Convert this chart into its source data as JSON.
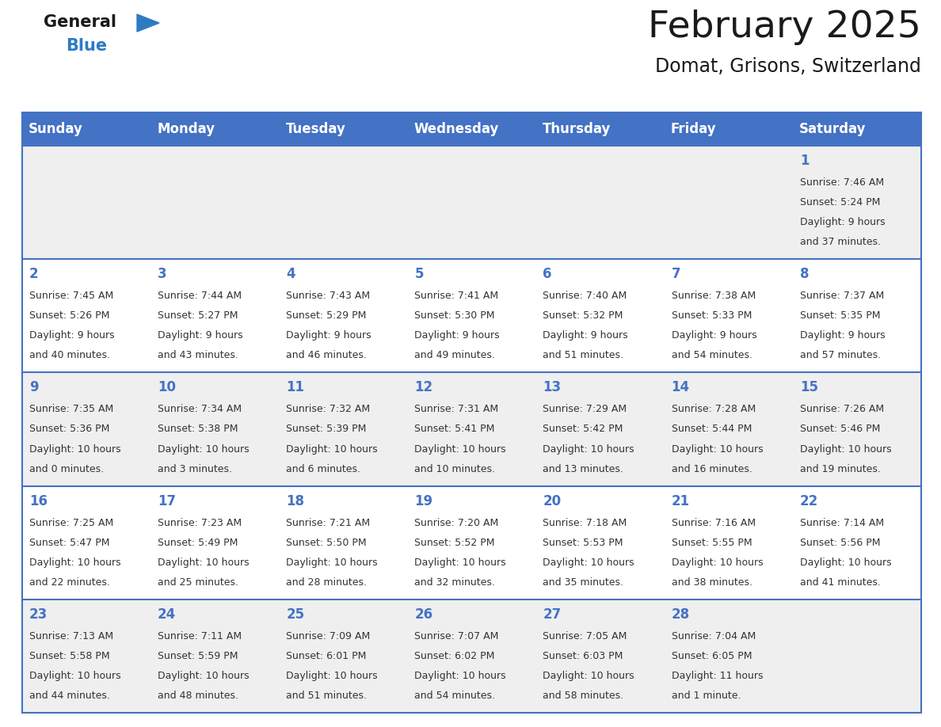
{
  "title": "February 2025",
  "subtitle": "Domat, Grisons, Switzerland",
  "days_of_week": [
    "Sunday",
    "Monday",
    "Tuesday",
    "Wednesday",
    "Thursday",
    "Friday",
    "Saturday"
  ],
  "header_bg": "#4472C4",
  "header_text": "#FFFFFF",
  "cell_bg_row0": "#EFEFEF",
  "cell_bg_row1": "#FFFFFF",
  "cell_bg_row2": "#EFEFEF",
  "cell_bg_row3": "#FFFFFF",
  "cell_bg_row4": "#EFEFEF",
  "cell_line_color": "#4472C4",
  "title_color": "#1a1a1a",
  "subtitle_color": "#1a1a1a",
  "day_number_color": "#4472C4",
  "info_color": "#333333",
  "logo_general_color": "#1a1a1a",
  "logo_blue_color": "#2E7BC4",
  "fig_width": 11.88,
  "fig_height": 9.18,
  "calendar_data": [
    {
      "day": 1,
      "col": 6,
      "row": 0,
      "sunrise": "7:46 AM",
      "sunset": "5:24 PM",
      "daylight_line1": "Daylight: 9 hours",
      "daylight_line2": "and 37 minutes."
    },
    {
      "day": 2,
      "col": 0,
      "row": 1,
      "sunrise": "7:45 AM",
      "sunset": "5:26 PM",
      "daylight_line1": "Daylight: 9 hours",
      "daylight_line2": "and 40 minutes."
    },
    {
      "day": 3,
      "col": 1,
      "row": 1,
      "sunrise": "7:44 AM",
      "sunset": "5:27 PM",
      "daylight_line1": "Daylight: 9 hours",
      "daylight_line2": "and 43 minutes."
    },
    {
      "day": 4,
      "col": 2,
      "row": 1,
      "sunrise": "7:43 AM",
      "sunset": "5:29 PM",
      "daylight_line1": "Daylight: 9 hours",
      "daylight_line2": "and 46 minutes."
    },
    {
      "day": 5,
      "col": 3,
      "row": 1,
      "sunrise": "7:41 AM",
      "sunset": "5:30 PM",
      "daylight_line1": "Daylight: 9 hours",
      "daylight_line2": "and 49 minutes."
    },
    {
      "day": 6,
      "col": 4,
      "row": 1,
      "sunrise": "7:40 AM",
      "sunset": "5:32 PM",
      "daylight_line1": "Daylight: 9 hours",
      "daylight_line2": "and 51 minutes."
    },
    {
      "day": 7,
      "col": 5,
      "row": 1,
      "sunrise": "7:38 AM",
      "sunset": "5:33 PM",
      "daylight_line1": "Daylight: 9 hours",
      "daylight_line2": "and 54 minutes."
    },
    {
      "day": 8,
      "col": 6,
      "row": 1,
      "sunrise": "7:37 AM",
      "sunset": "5:35 PM",
      "daylight_line1": "Daylight: 9 hours",
      "daylight_line2": "and 57 minutes."
    },
    {
      "day": 9,
      "col": 0,
      "row": 2,
      "sunrise": "7:35 AM",
      "sunset": "5:36 PM",
      "daylight_line1": "Daylight: 10 hours",
      "daylight_line2": "and 0 minutes."
    },
    {
      "day": 10,
      "col": 1,
      "row": 2,
      "sunrise": "7:34 AM",
      "sunset": "5:38 PM",
      "daylight_line1": "Daylight: 10 hours",
      "daylight_line2": "and 3 minutes."
    },
    {
      "day": 11,
      "col": 2,
      "row": 2,
      "sunrise": "7:32 AM",
      "sunset": "5:39 PM",
      "daylight_line1": "Daylight: 10 hours",
      "daylight_line2": "and 6 minutes."
    },
    {
      "day": 12,
      "col": 3,
      "row": 2,
      "sunrise": "7:31 AM",
      "sunset": "5:41 PM",
      "daylight_line1": "Daylight: 10 hours",
      "daylight_line2": "and 10 minutes."
    },
    {
      "day": 13,
      "col": 4,
      "row": 2,
      "sunrise": "7:29 AM",
      "sunset": "5:42 PM",
      "daylight_line1": "Daylight: 10 hours",
      "daylight_line2": "and 13 minutes."
    },
    {
      "day": 14,
      "col": 5,
      "row": 2,
      "sunrise": "7:28 AM",
      "sunset": "5:44 PM",
      "daylight_line1": "Daylight: 10 hours",
      "daylight_line2": "and 16 minutes."
    },
    {
      "day": 15,
      "col": 6,
      "row": 2,
      "sunrise": "7:26 AM",
      "sunset": "5:46 PM",
      "daylight_line1": "Daylight: 10 hours",
      "daylight_line2": "and 19 minutes."
    },
    {
      "day": 16,
      "col": 0,
      "row": 3,
      "sunrise": "7:25 AM",
      "sunset": "5:47 PM",
      "daylight_line1": "Daylight: 10 hours",
      "daylight_line2": "and 22 minutes."
    },
    {
      "day": 17,
      "col": 1,
      "row": 3,
      "sunrise": "7:23 AM",
      "sunset": "5:49 PM",
      "daylight_line1": "Daylight: 10 hours",
      "daylight_line2": "and 25 minutes."
    },
    {
      "day": 18,
      "col": 2,
      "row": 3,
      "sunrise": "7:21 AM",
      "sunset": "5:50 PM",
      "daylight_line1": "Daylight: 10 hours",
      "daylight_line2": "and 28 minutes."
    },
    {
      "day": 19,
      "col": 3,
      "row": 3,
      "sunrise": "7:20 AM",
      "sunset": "5:52 PM",
      "daylight_line1": "Daylight: 10 hours",
      "daylight_line2": "and 32 minutes."
    },
    {
      "day": 20,
      "col": 4,
      "row": 3,
      "sunrise": "7:18 AM",
      "sunset": "5:53 PM",
      "daylight_line1": "Daylight: 10 hours",
      "daylight_line2": "and 35 minutes."
    },
    {
      "day": 21,
      "col": 5,
      "row": 3,
      "sunrise": "7:16 AM",
      "sunset": "5:55 PM",
      "daylight_line1": "Daylight: 10 hours",
      "daylight_line2": "and 38 minutes."
    },
    {
      "day": 22,
      "col": 6,
      "row": 3,
      "sunrise": "7:14 AM",
      "sunset": "5:56 PM",
      "daylight_line1": "Daylight: 10 hours",
      "daylight_line2": "and 41 minutes."
    },
    {
      "day": 23,
      "col": 0,
      "row": 4,
      "sunrise": "7:13 AM",
      "sunset": "5:58 PM",
      "daylight_line1": "Daylight: 10 hours",
      "daylight_line2": "and 44 minutes."
    },
    {
      "day": 24,
      "col": 1,
      "row": 4,
      "sunrise": "7:11 AM",
      "sunset": "5:59 PM",
      "daylight_line1": "Daylight: 10 hours",
      "daylight_line2": "and 48 minutes."
    },
    {
      "day": 25,
      "col": 2,
      "row": 4,
      "sunrise": "7:09 AM",
      "sunset": "6:01 PM",
      "daylight_line1": "Daylight: 10 hours",
      "daylight_line2": "and 51 minutes."
    },
    {
      "day": 26,
      "col": 3,
      "row": 4,
      "sunrise": "7:07 AM",
      "sunset": "6:02 PM",
      "daylight_line1": "Daylight: 10 hours",
      "daylight_line2": "and 54 minutes."
    },
    {
      "day": 27,
      "col": 4,
      "row": 4,
      "sunrise": "7:05 AM",
      "sunset": "6:03 PM",
      "daylight_line1": "Daylight: 10 hours",
      "daylight_line2": "and 58 minutes."
    },
    {
      "day": 28,
      "col": 5,
      "row": 4,
      "sunrise": "7:04 AM",
      "sunset": "6:05 PM",
      "daylight_line1": "Daylight: 11 hours",
      "daylight_line2": "and 1 minute."
    }
  ]
}
